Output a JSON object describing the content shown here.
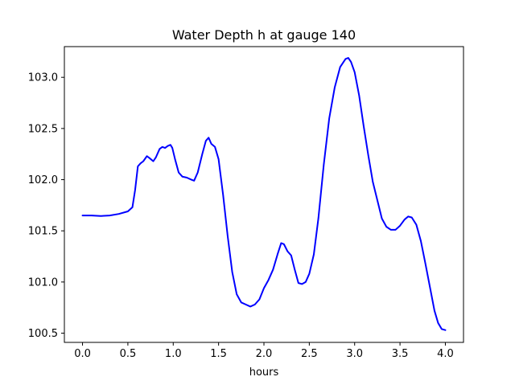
{
  "chart_data": {
    "type": "line",
    "title": "Water Depth h at gauge 140",
    "xlabel": "hours",
    "ylabel": "",
    "xlim": [
      -0.2,
      4.2
    ],
    "ylim": [
      100.41,
      103.3
    ],
    "xticks": [
      0.0,
      0.5,
      1.0,
      1.5,
      2.0,
      2.5,
      3.0,
      3.5,
      4.0
    ],
    "xtick_labels": [
      "0.0",
      "0.5",
      "1.0",
      "1.5",
      "2.0",
      "2.5",
      "3.0",
      "3.5",
      "4.0"
    ],
    "yticks": [
      100.5,
      101.0,
      101.5,
      102.0,
      102.5,
      103.0
    ],
    "ytick_labels": [
      "100.5",
      "101.0",
      "101.5",
      "102.0",
      "102.5",
      "103.0"
    ],
    "grid": false,
    "line_color": "#0000ff",
    "series": [
      {
        "points": [
          [
            0.0,
            101.65
          ],
          [
            0.1,
            101.65
          ],
          [
            0.2,
            101.645
          ],
          [
            0.3,
            101.65
          ],
          [
            0.4,
            101.665
          ],
          [
            0.5,
            101.69
          ],
          [
            0.55,
            101.73
          ],
          [
            0.58,
            101.9
          ],
          [
            0.61,
            102.13
          ],
          [
            0.64,
            102.16
          ],
          [
            0.67,
            102.18
          ],
          [
            0.71,
            102.23
          ],
          [
            0.74,
            102.21
          ],
          [
            0.78,
            102.18
          ],
          [
            0.81,
            102.22
          ],
          [
            0.85,
            102.3
          ],
          [
            0.88,
            102.32
          ],
          [
            0.91,
            102.31
          ],
          [
            0.94,
            102.33
          ],
          [
            0.97,
            102.34
          ],
          [
            0.99,
            102.31
          ],
          [
            1.02,
            102.2
          ],
          [
            1.06,
            102.07
          ],
          [
            1.1,
            102.03
          ],
          [
            1.15,
            102.02
          ],
          [
            1.2,
            102.0
          ],
          [
            1.23,
            101.99
          ],
          [
            1.27,
            102.07
          ],
          [
            1.32,
            102.25
          ],
          [
            1.36,
            102.38
          ],
          [
            1.39,
            102.41
          ],
          [
            1.42,
            102.35
          ],
          [
            1.46,
            102.32
          ],
          [
            1.5,
            102.2
          ],
          [
            1.55,
            101.85
          ],
          [
            1.6,
            101.45
          ],
          [
            1.65,
            101.1
          ],
          [
            1.7,
            100.88
          ],
          [
            1.75,
            100.8
          ],
          [
            1.8,
            100.78
          ],
          [
            1.85,
            100.76
          ],
          [
            1.9,
            100.78
          ],
          [
            1.95,
            100.83
          ],
          [
            2.0,
            100.94
          ],
          [
            2.05,
            101.02
          ],
          [
            2.1,
            101.12
          ],
          [
            2.15,
            101.27
          ],
          [
            2.19,
            101.38
          ],
          [
            2.22,
            101.37
          ],
          [
            2.26,
            101.3
          ],
          [
            2.3,
            101.26
          ],
          [
            2.34,
            101.12
          ],
          [
            2.38,
            100.99
          ],
          [
            2.42,
            100.98
          ],
          [
            2.46,
            101.0
          ],
          [
            2.5,
            101.08
          ],
          [
            2.55,
            101.27
          ],
          [
            2.6,
            101.62
          ],
          [
            2.66,
            102.15
          ],
          [
            2.72,
            102.6
          ],
          [
            2.78,
            102.9
          ],
          [
            2.84,
            103.1
          ],
          [
            2.9,
            103.18
          ],
          [
            2.93,
            103.19
          ],
          [
            2.96,
            103.15
          ],
          [
            3.0,
            103.05
          ],
          [
            3.05,
            102.82
          ],
          [
            3.1,
            102.52
          ],
          [
            3.15,
            102.24
          ],
          [
            3.2,
            101.98
          ],
          [
            3.25,
            101.8
          ],
          [
            3.3,
            101.62
          ],
          [
            3.35,
            101.54
          ],
          [
            3.4,
            101.51
          ],
          [
            3.45,
            101.51
          ],
          [
            3.5,
            101.55
          ],
          [
            3.55,
            101.61
          ],
          [
            3.59,
            101.64
          ],
          [
            3.63,
            101.63
          ],
          [
            3.68,
            101.56
          ],
          [
            3.73,
            101.4
          ],
          [
            3.78,
            101.18
          ],
          [
            3.83,
            100.95
          ],
          [
            3.88,
            100.72
          ],
          [
            3.92,
            100.6
          ],
          [
            3.96,
            100.54
          ],
          [
            4.0,
            100.53
          ]
        ]
      }
    ]
  }
}
